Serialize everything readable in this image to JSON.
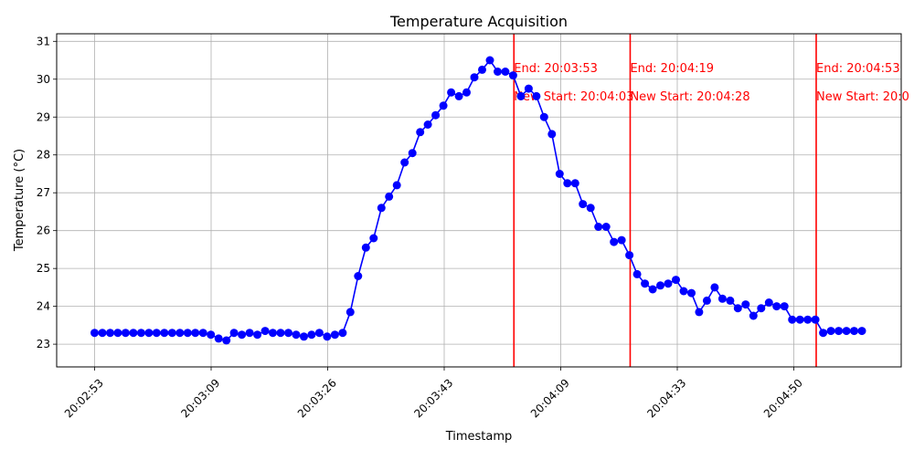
{
  "chart_data": {
    "type": "line",
    "title": "Temperature Acquisition",
    "xlabel": "Timestamp",
    "ylabel": "Temperature (°C)",
    "x_ticks": [
      "20:02:53",
      "20:03:09",
      "20:03:26",
      "20:03:43",
      "20:04:09",
      "20:04:33",
      "20:04:50"
    ],
    "y_ticks": [
      23,
      24,
      25,
      26,
      27,
      28,
      29,
      30,
      31
    ],
    "ylim": [
      22.4,
      31.2
    ],
    "grid": true,
    "series_color": "#0000ff",
    "marker_color": "#0000ff",
    "annotation_color": "#ff0000",
    "series": [
      {
        "values": [
          23.3,
          23.3,
          23.3,
          23.3,
          23.3,
          23.3,
          23.3,
          23.3,
          23.3,
          23.3,
          23.3,
          23.3,
          23.3,
          23.3,
          23.3,
          23.25,
          23.15,
          23.1,
          23.3,
          23.25,
          23.3,
          23.25,
          23.35,
          23.3,
          23.3,
          23.3,
          23.25,
          23.2,
          23.25,
          23.3,
          23.2,
          23.25,
          23.3,
          23.85,
          24.8,
          25.55,
          25.8,
          26.6,
          26.9,
          27.2,
          27.8,
          28.05,
          28.6,
          28.8,
          29.05,
          29.3,
          29.65,
          29.55,
          29.65,
          30.05,
          30.25,
          30.5,
          30.2,
          30.2,
          30.1,
          29.55,
          29.75,
          29.55,
          29.0,
          28.55,
          27.5,
          27.25,
          27.25,
          26.7,
          26.6,
          26.1,
          26.1,
          25.7,
          25.75,
          25.35,
          24.85,
          24.6,
          24.45,
          24.55,
          24.6,
          24.7,
          24.4,
          24.35,
          23.85,
          24.15,
          24.5,
          24.2,
          24.15,
          23.95,
          24.05,
          23.75,
          23.95,
          24.1,
          24.0,
          24.0,
          23.65,
          23.65,
          23.65,
          23.65,
          23.3,
          23.35,
          23.35,
          23.35,
          23.35,
          23.35
        ]
      }
    ],
    "vlines": [
      {
        "after_point": 54,
        "end_label": "End: 20:03:53",
        "start_label": "New Start: 20:04:03"
      },
      {
        "after_point": 69,
        "end_label": "End: 20:04:19",
        "start_label": "New Start: 20:04:28"
      },
      {
        "after_point": 93,
        "end_label": "End: 20:04:53",
        "start_label": "New Start: 20:0"
      }
    ]
  }
}
